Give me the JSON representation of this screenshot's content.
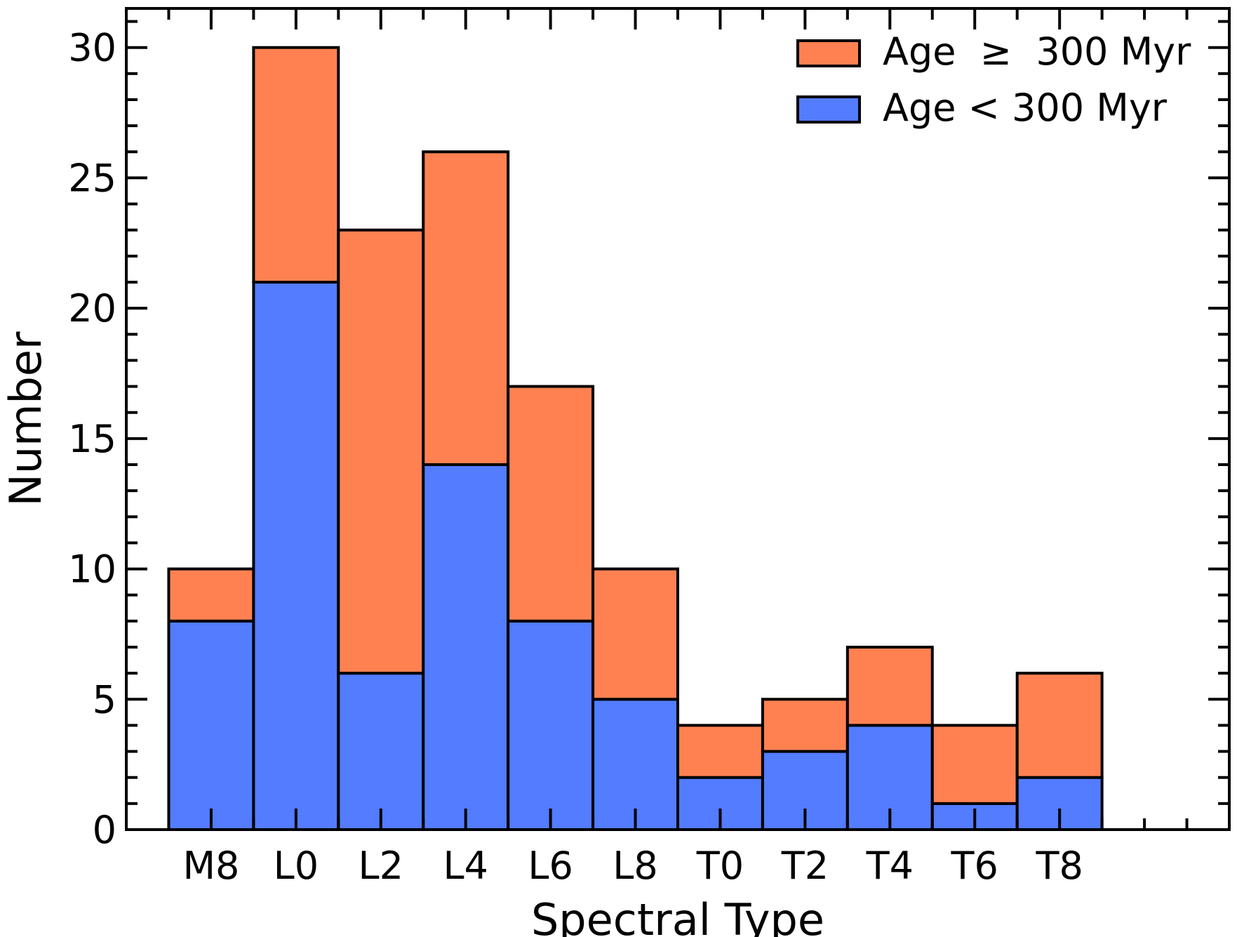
{
  "chart_data": {
    "type": "bar",
    "stacked": true,
    "title": "",
    "xlabel": "Spectral Type",
    "ylabel": "Number",
    "ylim": [
      0,
      31.5
    ],
    "xlim": [
      -1,
      12
    ],
    "yticks": [
      0,
      5,
      10,
      15,
      20,
      25,
      30
    ],
    "y_minor_step": 1,
    "x_minor_step": 0.5,
    "grid": false,
    "legend_position": "top-right",
    "categories": [
      "M8",
      "L0",
      "L2",
      "L4",
      "L6",
      "L8",
      "T0",
      "T2",
      "T4",
      "T6",
      "T8"
    ],
    "tick_labels": [
      "M8",
      "L0",
      "L2",
      "L4",
      "L6",
      "L8",
      "T0",
      "T2",
      "T4",
      "T6",
      "T8"
    ],
    "series": [
      {
        "name": "Age < 300 Myr",
        "color": "#537cff",
        "values": [
          8,
          21,
          6,
          14,
          8,
          5,
          2,
          3,
          4,
          1,
          2
        ]
      },
      {
        "name": "Age ≥ 300 Myr",
        "color": "#ff8152",
        "values": [
          2,
          9,
          17,
          12,
          9,
          5,
          2,
          2,
          3,
          3,
          4
        ]
      }
    ],
    "legend": [
      {
        "label": "Age  ≥  300 Myr",
        "color": "#ff8152"
      },
      {
        "label": "Age < 300 Myr",
        "color": "#537cff"
      }
    ]
  }
}
